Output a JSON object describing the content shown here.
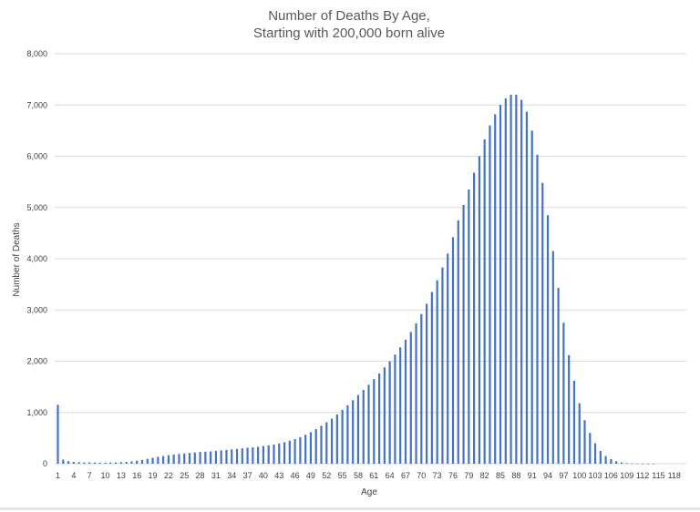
{
  "chart_data": {
    "type": "bar",
    "title_lines": [
      "Number of Deaths By Age,",
      "Starting with 200,000 born alive"
    ],
    "xlabel": "Age",
    "ylabel": "Number of Deaths",
    "ylim": [
      0,
      8000
    ],
    "yticks": [
      "0",
      "1,000",
      "2,000",
      "3,000",
      "4,000",
      "5,000",
      "6,000",
      "7,000",
      "8,000"
    ],
    "x_tick_labels": [
      "1",
      "4",
      "7",
      "10",
      "13",
      "16",
      "19",
      "22",
      "25",
      "28",
      "31",
      "34",
      "37",
      "40",
      "43",
      "46",
      "49",
      "52",
      "55",
      "58",
      "61",
      "64",
      "67",
      "70",
      "73",
      "76",
      "79",
      "82",
      "85",
      "88",
      "91",
      "94",
      "97",
      "100",
      "103",
      "106",
      "109",
      "112",
      "115",
      "118"
    ],
    "grid": true,
    "legend": "none",
    "color": "#4472c4",
    "categories": [
      "1",
      "2",
      "3",
      "4",
      "5",
      "6",
      "7",
      "8",
      "9",
      "10",
      "11",
      "12",
      "13",
      "14",
      "15",
      "16",
      "17",
      "18",
      "19",
      "20",
      "21",
      "22",
      "23",
      "24",
      "25",
      "26",
      "27",
      "28",
      "29",
      "30",
      "31",
      "32",
      "33",
      "34",
      "35",
      "36",
      "37",
      "38",
      "39",
      "40",
      "41",
      "42",
      "43",
      "44",
      "45",
      "46",
      "47",
      "48",
      "49",
      "50",
      "51",
      "52",
      "53",
      "54",
      "55",
      "56",
      "57",
      "58",
      "59",
      "60",
      "61",
      "62",
      "63",
      "64",
      "65",
      "66",
      "67",
      "68",
      "69",
      "70",
      "71",
      "72",
      "73",
      "74",
      "75",
      "76",
      "77",
      "78",
      "79",
      "80",
      "81",
      "82",
      "83",
      "84",
      "85",
      "86",
      "87",
      "88",
      "89",
      "90",
      "91",
      "92",
      "93",
      "94",
      "95",
      "96",
      "97",
      "98",
      "99",
      "100",
      "101",
      "102",
      "103",
      "104",
      "105",
      "106",
      "107",
      "108",
      "109",
      "110",
      "111",
      "112",
      "113",
      "114",
      "115",
      "116",
      "117",
      "118",
      "119",
      "120"
    ],
    "values": [
      1150,
      80,
      50,
      35,
      30,
      25,
      25,
      22,
      20,
      20,
      22,
      25,
      30,
      35,
      45,
      60,
      75,
      95,
      115,
      135,
      150,
      165,
      180,
      190,
      200,
      210,
      220,
      230,
      235,
      240,
      250,
      260,
      270,
      280,
      290,
      300,
      310,
      320,
      330,
      345,
      360,
      375,
      395,
      420,
      450,
      480,
      520,
      565,
      615,
      675,
      740,
      810,
      880,
      960,
      1050,
      1140,
      1240,
      1340,
      1440,
      1540,
      1650,
      1760,
      1880,
      2000,
      2130,
      2270,
      2420,
      2570,
      2740,
      2920,
      3120,
      3350,
      3580,
      3830,
      4100,
      4420,
      4750,
      5050,
      5350,
      5680,
      6000,
      6330,
      6600,
      6820,
      7000,
      7130,
      7200,
      7200,
      7100,
      6870,
      6500,
      6030,
      5480,
      4850,
      4150,
      3430,
      2750,
      2120,
      1620,
      1180,
      850,
      600,
      400,
      250,
      150,
      90,
      50,
      25,
      12,
      6,
      3,
      2,
      1,
      1,
      0,
      0,
      0,
      0,
      0,
      0
    ]
  }
}
